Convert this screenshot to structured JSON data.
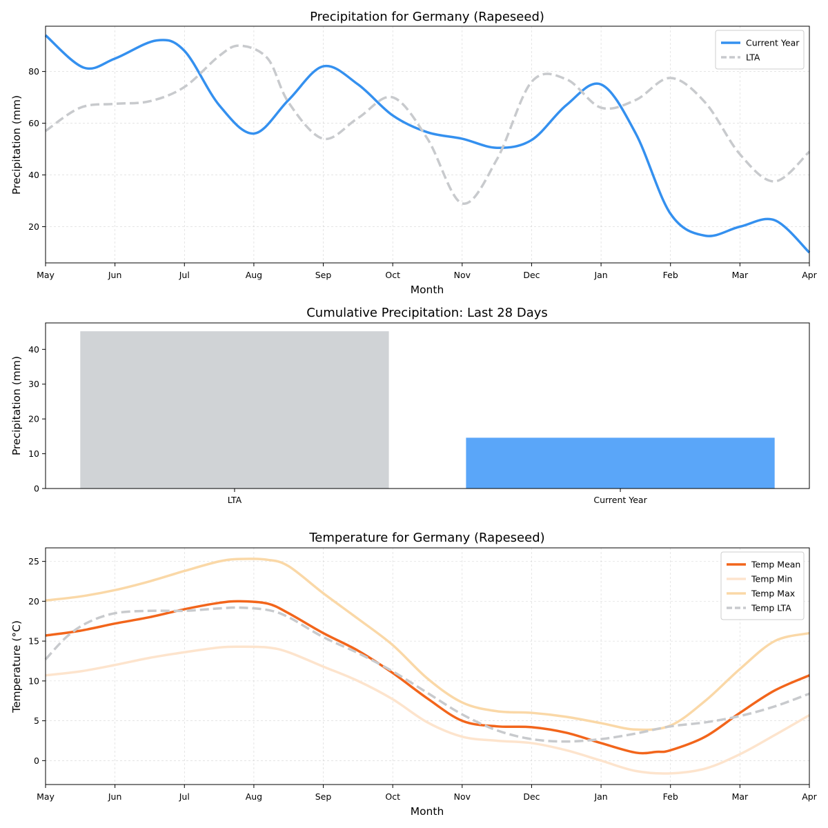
{
  "chart_data": [
    {
      "id": "precip",
      "type": "line",
      "title": "Precipitation for Germany (Rapeseed)",
      "xlabel": "Month",
      "ylabel": "Precipitation (mm)",
      "categories": [
        "May",
        "Jun",
        "Jul",
        "Aug",
        "Sep",
        "Oct",
        "Nov",
        "Dec",
        "Jan",
        "Feb",
        "Mar",
        "Apr"
      ],
      "ylim": [
        6,
        97.5
      ],
      "yticks": [
        20,
        40,
        60,
        80
      ],
      "grid": true,
      "legend_position": "top-right",
      "series": [
        {
          "name": "Current Year",
          "color": "#3490ef",
          "dash": false,
          "x": [
            0,
            0.55,
            1,
            1.6,
            2,
            2.5,
            3,
            3.5,
            4,
            4.5,
            5,
            5.5,
            6,
            6.5,
            7,
            7.5,
            8,
            8.5,
            9,
            9.5,
            10,
            10.5,
            11
          ],
          "values": [
            94,
            81.5,
            85,
            92,
            88,
            67,
            56,
            69,
            82,
            75,
            63,
            56.5,
            54,
            50.5,
            53.5,
            67,
            75,
            56,
            25,
            16.5,
            20,
            22.5,
            10
          ]
        },
        {
          "name": "LTA",
          "color": "#c8cacd",
          "dash": true,
          "x": [
            0,
            0.5,
            1,
            1.5,
            2,
            2.5,
            2.8,
            3.2,
            3.5,
            4,
            4.5,
            5,
            5.5,
            6,
            6.5,
            7,
            7.5,
            8,
            8.5,
            9,
            9.5,
            10,
            10.5,
            11
          ],
          "values": [
            57,
            66,
            67.5,
            68.5,
            74,
            86,
            90,
            85,
            68,
            54,
            62,
            70,
            54,
            29,
            46,
            76,
            77,
            66,
            69,
            77.5,
            68,
            48,
            37.5,
            49
          ]
        }
      ]
    },
    {
      "id": "cumulative",
      "type": "bar",
      "title": "Cumulative Precipitation: Last 28 Days",
      "ylabel": "Precipitation (mm)",
      "categories": [
        "LTA",
        "Current Year"
      ],
      "values": [
        45.2,
        14.6
      ],
      "colors": [
        "#d0d3d6",
        "#5aa6f9"
      ],
      "ylim": [
        0,
        47.6
      ],
      "yticks": [
        0,
        10,
        20,
        30,
        40
      ],
      "grid": false
    },
    {
      "id": "temp",
      "type": "line",
      "title": "Temperature for Germany (Rapeseed)",
      "xlabel": "Month",
      "ylabel": "Temperature (°C)",
      "categories": [
        "May",
        "Jun",
        "Jul",
        "Aug",
        "Sep",
        "Oct",
        "Nov",
        "Dec",
        "Jan",
        "Feb",
        "Mar",
        "Apr"
      ],
      "ylim": [
        -3,
        26.7
      ],
      "yticks": [
        0,
        5,
        10,
        15,
        20,
        25
      ],
      "grid": true,
      "legend_position": "top-right",
      "series": [
        {
          "name": "Temp Mean",
          "color": "#f2651b",
          "dash": false,
          "x": [
            0,
            0.5,
            1,
            1.5,
            2,
            2.5,
            2.8,
            3.2,
            3.5,
            4,
            4.5,
            5,
            5.5,
            6,
            6.5,
            7,
            7.5,
            8,
            8.5,
            8.8,
            9,
            9.5,
            10,
            10.5,
            11
          ],
          "values": [
            15.7,
            16.3,
            17.2,
            18,
            19,
            19.8,
            20,
            19.7,
            18.5,
            16,
            13.8,
            11,
            7.8,
            5,
            4.3,
            4.2,
            3.5,
            2.2,
            1,
            1.1,
            1.3,
            3,
            6,
            8.8,
            10.7
          ]
        },
        {
          "name": "Temp Min",
          "color": "#fde4cd",
          "dash": false,
          "x": [
            0,
            0.5,
            1,
            1.5,
            2,
            2.5,
            2.8,
            3.2,
            3.5,
            4,
            4.5,
            5,
            5.5,
            6,
            6.5,
            7,
            7.5,
            8,
            8.5,
            9,
            9.5,
            10,
            10.5,
            11
          ],
          "values": [
            10.7,
            11.2,
            12,
            12.9,
            13.6,
            14.2,
            14.3,
            14.2,
            13.6,
            11.8,
            10,
            7.7,
            4.8,
            3,
            2.5,
            2.2,
            1.3,
            0,
            -1.3,
            -1.6,
            -1,
            0.8,
            3.2,
            5.7
          ]
        },
        {
          "name": "Temp Max",
          "color": "#fad8a7",
          "dash": false,
          "x": [
            0,
            0.5,
            1,
            1.5,
            2,
            2.5,
            2.8,
            3.2,
            3.5,
            4,
            4.5,
            5,
            5.5,
            6,
            6.5,
            7,
            7.5,
            8,
            8.5,
            9,
            9.5,
            10,
            10.5,
            11
          ],
          "values": [
            20.1,
            20.6,
            21.4,
            22.5,
            23.8,
            25,
            25.3,
            25.2,
            24.4,
            21,
            17.8,
            14.5,
            10.3,
            7.3,
            6.2,
            6,
            5.5,
            4.7,
            3.9,
            4.4,
            7.5,
            11.5,
            15,
            16
          ]
        },
        {
          "name": "Temp LTA",
          "color": "#c8cacd",
          "dash": true,
          "x": [
            0,
            0.3,
            0.6,
            1,
            1.5,
            2,
            2.5,
            2.8,
            3.2,
            3.5,
            4,
            4.5,
            5,
            5.5,
            6,
            6.5,
            7,
            7.5,
            8,
            8.5,
            9,
            9.5,
            10,
            10.5,
            11
          ],
          "values": [
            12.7,
            15.5,
            17.3,
            18.5,
            18.8,
            18.8,
            19.1,
            19.2,
            18.9,
            18,
            15.5,
            13.5,
            11.2,
            8.5,
            5.8,
            3.8,
            2.7,
            2.4,
            2.7,
            3.4,
            4.3,
            4.8,
            5.6,
            6.8,
            8.4
          ]
        }
      ]
    }
  ]
}
